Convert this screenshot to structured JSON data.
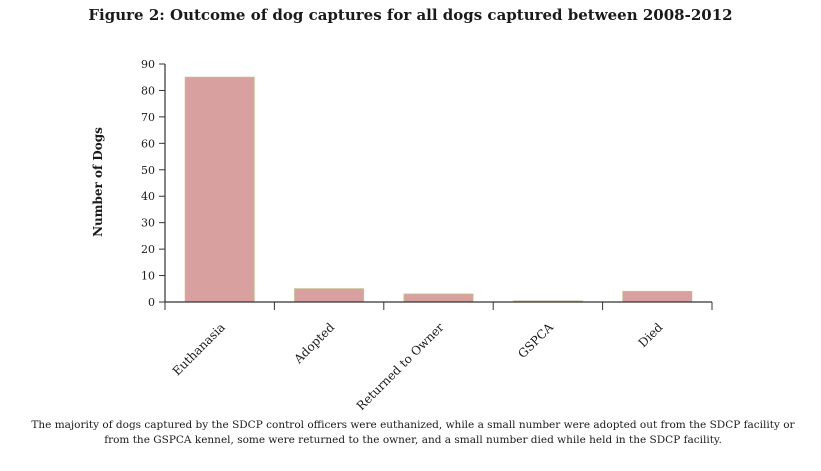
{
  "figure": {
    "title": "Figure 2: Outcome of dog captures for all dogs captured between 2008-2012",
    "caption": "The majority of dogs captured by the SDCP control officers were euthanized, while a small number were adopted out from the SDCP facility or from the GSPCA kennel, some were returned to the owner, and a small number died while held in the SDCP facility."
  },
  "colors": {
    "bar_fill": "#d9a0a0",
    "bar_edge": "#c8b98c",
    "axis": "#333333"
  },
  "chart_data": {
    "type": "bar",
    "title": "",
    "xlabel": "",
    "ylabel": "Number of Dogs",
    "categories": [
      "Euthanasia",
      "Adopted",
      "Returned to Owner",
      "GSPCA",
      "Died"
    ],
    "values": [
      85,
      5,
      3,
      0.3,
      4
    ],
    "ylim": [
      0,
      90
    ],
    "yticks": [
      0,
      10,
      20,
      30,
      40,
      50,
      60,
      70,
      80,
      90
    ],
    "grid": false,
    "legend": "none"
  }
}
